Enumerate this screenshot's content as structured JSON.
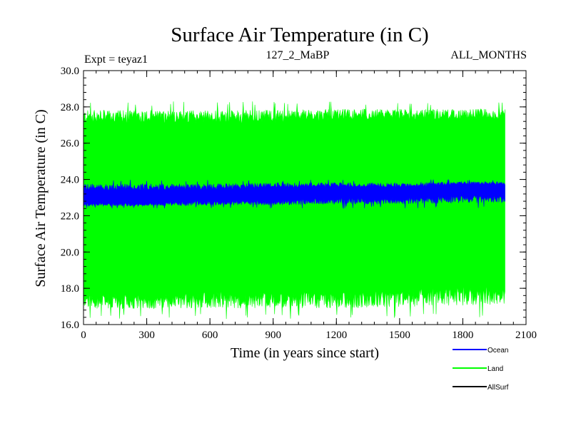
{
  "chart_data": {
    "type": "area",
    "title": "Surface Air Temperature (in C)",
    "expt_label": "Expt = teyaz1",
    "period_label": "127_2_MaBP",
    "months_label": "ALL_MONTHS",
    "xlabel": "Time (in years since start)",
    "ylabel": "Surface Air Temperature (in C)",
    "xlim": [
      0,
      2100
    ],
    "ylim": [
      16.0,
      30.0
    ],
    "x_ticks": [
      "0",
      "300",
      "600",
      "900",
      "1200",
      "1500",
      "1800",
      "2100"
    ],
    "y_ticks": [
      "16.0",
      "18.0",
      "20.0",
      "22.0",
      "24.0",
      "26.0",
      "28.0",
      "30.0"
    ],
    "x_tick_values": [
      0,
      300,
      600,
      900,
      1200,
      1500,
      1800,
      2100
    ],
    "y_tick_values": [
      16,
      18,
      20,
      22,
      24,
      26,
      28,
      30
    ],
    "data_end_year": 2000,
    "series": [
      {
        "name": "Land",
        "color": "#00ff00",
        "band_x": [
          0,
          300,
          600,
          900,
          1200,
          1500,
          1800,
          2000
        ],
        "band_low": [
          17.3,
          17.2,
          17.3,
          17.3,
          17.3,
          17.4,
          17.5,
          17.6
        ],
        "band_high": [
          27.5,
          27.5,
          27.5,
          27.5,
          27.6,
          27.6,
          27.6,
          27.6
        ],
        "extreme_min": 16.3,
        "extreme_max": 28.3
      },
      {
        "name": "Ocean",
        "color": "#0000ff",
        "band_x": [
          0,
          300,
          600,
          900,
          1200,
          1500,
          1800,
          2000
        ],
        "band_low": [
          22.6,
          22.6,
          22.7,
          22.7,
          22.8,
          22.8,
          22.9,
          22.9
        ],
        "band_high": [
          23.6,
          23.6,
          23.6,
          23.7,
          23.7,
          23.7,
          23.8,
          23.8
        ],
        "extreme_min": 22.4,
        "extreme_max": 24.0
      },
      {
        "name": "AllSurf",
        "color": "#000000"
      }
    ],
    "legend": [
      "Ocean",
      "Land",
      "AllSurf"
    ],
    "legend_position": "bottom-right"
  }
}
